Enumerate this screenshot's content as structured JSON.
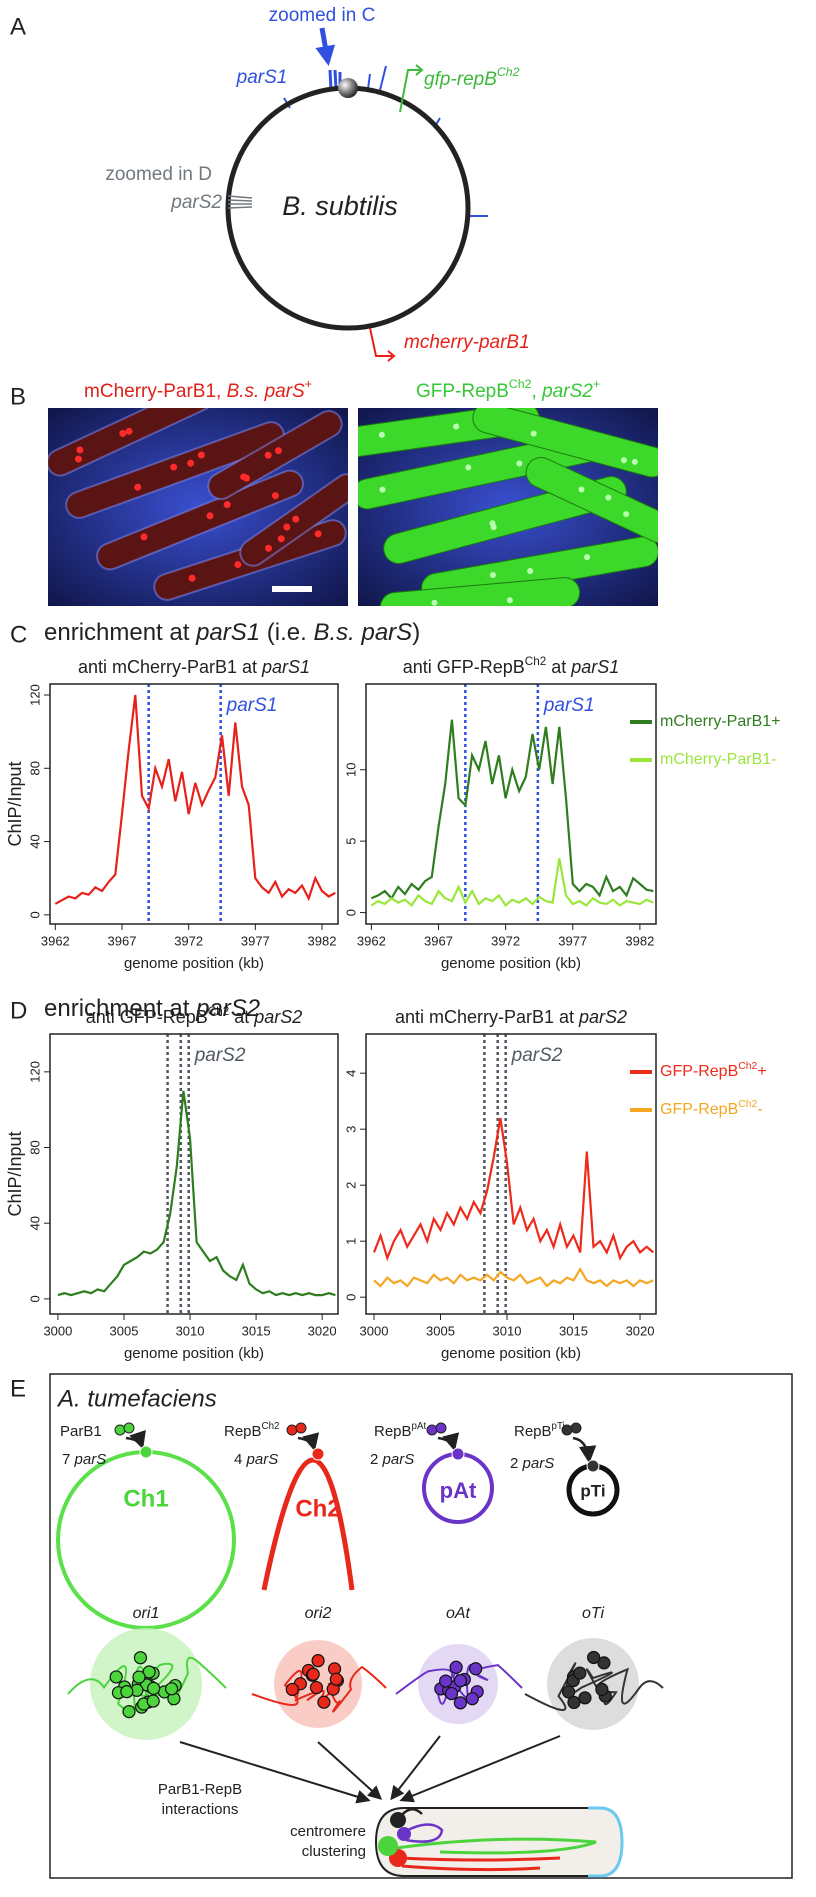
{
  "figure": {
    "panel_labels": [
      "A",
      "B",
      "C",
      "D",
      "E"
    ],
    "a": {
      "zoom_c": "zoomed in C",
      "pars1": "parS1",
      "gfp": [
        {
          "t": "gfp-repB"
        },
        {
          "t": "Ch2",
          "sup": true
        }
      ],
      "zoom_d": "zoomed in D",
      "pars2": "parS2",
      "organism": "B. subtilis",
      "mcherry": "mcherry-parB1"
    },
    "b": {
      "left_title": [
        {
          "t": "mCherry-ParB1, "
        },
        {
          "t": "B.s. parS",
          "i": true
        },
        {
          "t": "+",
          "sup": true
        }
      ],
      "right_title": [
        {
          "t": "GFP-RepB"
        },
        {
          "t": "Ch2",
          "sup": true
        },
        {
          "t": ", "
        },
        {
          "t": "parS2",
          "i": true
        },
        {
          "t": "+",
          "sup": true
        }
      ]
    },
    "c": {
      "heading": [
        {
          "t": "enrichment at "
        },
        {
          "t": "parS1",
          "i": true
        },
        {
          "t": " (i.e. "
        },
        {
          "t": "B.s. parS",
          "i": true
        },
        {
          "t": ")"
        }
      ]
    },
    "d": {
      "heading": [
        {
          "t": "enrichment at "
        },
        {
          "t": "parS2",
          "i": true
        }
      ]
    },
    "e": {
      "organism": "A. tumefaciens",
      "proteins": [
        "ParB1",
        [
          {
            "t": "RepB"
          },
          {
            "t": "Ch2",
            "sup": true
          }
        ],
        [
          {
            "t": "RepB"
          },
          {
            "t": "pAt",
            "sup": true
          }
        ],
        [
          {
            "t": "RepB"
          },
          {
            "t": "pTi",
            "sup": true
          }
        ]
      ],
      "pars": [
        [
          {
            "t": "7 "
          },
          {
            "t": "parS",
            "i": true
          }
        ],
        [
          {
            "t": "4 "
          },
          {
            "t": "parS",
            "i": true
          }
        ],
        [
          {
            "t": "2 "
          },
          {
            "t": "parS",
            "i": true
          }
        ],
        [
          {
            "t": "2 "
          },
          {
            "t": "parS",
            "i": true
          }
        ]
      ],
      "replicons": [
        "Ch1",
        "Ch2",
        "pAt",
        "pTi"
      ],
      "origins": [
        "ori1",
        "ori2",
        "oAt",
        "oTi"
      ],
      "interactions": [
        "ParB1-RepB",
        "interactions"
      ],
      "clustering": [
        "centromere",
        "clustering"
      ]
    }
  },
  "chart_data": [
    {
      "type": "line",
      "title": [
        {
          "t": "anti mCherry-ParB1 at "
        },
        {
          "t": "parS1",
          "i": true
        }
      ],
      "ylabel": "ChIP/Input",
      "xlabel": "genome position (kb)",
      "x": [
        3962,
        3962.5,
        3963,
        3963.5,
        3964,
        3964.5,
        3965,
        3965.5,
        3966,
        3966.5,
        3967,
        3967.5,
        3968,
        3968.5,
        3969,
        3969.5,
        3970,
        3970.5,
        3971,
        3971.5,
        3972,
        3972.5,
        3973,
        3973.5,
        3974,
        3974.5,
        3975,
        3975.5,
        3976,
        3976.5,
        3977,
        3977.5,
        3978,
        3978.5,
        3979,
        3979.5,
        3980,
        3980.5,
        3981,
        3981.5,
        3982,
        3982.5,
        3983
      ],
      "series": [
        {
          "name": "mCherry-ParB1",
          "color": "#e8201a",
          "values": [
            6,
            8,
            10,
            9,
            12,
            11,
            15,
            13,
            18,
            22,
            55,
            90,
            120,
            65,
            58,
            80,
            70,
            85,
            62,
            78,
            55,
            72,
            60,
            68,
            75,
            98,
            65,
            105,
            70,
            60,
            20,
            15,
            12,
            18,
            10,
            14,
            12,
            16,
            9,
            20,
            13,
            10,
            12
          ]
        }
      ],
      "xlim": [
        3961.6,
        3983.2
      ],
      "xticks": [
        3962,
        3967,
        3972,
        3977,
        3982
      ],
      "ylim": [
        -5,
        126
      ],
      "yticks": [
        0,
        40,
        80,
        120
      ],
      "vlines": [
        3969,
        3974.4
      ],
      "vline_label": "parS1",
      "vline_color": "#3050e0"
    },
    {
      "type": "line",
      "title": [
        {
          "t": "anti GFP-RepB"
        },
        {
          "t": "Ch2",
          "sup": true
        },
        {
          "t": " at "
        },
        {
          "t": "parS1",
          "i": true
        }
      ],
      "xlabel": "genome position (kb)",
      "x": [
        3962,
        3962.5,
        3963,
        3963.5,
        3964,
        3964.5,
        3965,
        3965.5,
        3966,
        3966.5,
        3967,
        3967.5,
        3968,
        3968.5,
        3969,
        3969.5,
        3970,
        3970.5,
        3971,
        3971.5,
        3972,
        3972.5,
        3973,
        3973.5,
        3974,
        3974.5,
        3975,
        3975.5,
        3976,
        3976.5,
        3977,
        3977.5,
        3978,
        3978.5,
        3979,
        3979.5,
        3980,
        3980.5,
        3981,
        3981.5,
        3982,
        3982.5,
        3983
      ],
      "series": [
        {
          "name": "mCherry-ParB1+",
          "color": "#2e7d1e",
          "values": [
            1,
            1.2,
            1.5,
            1,
            1.8,
            1.3,
            2,
            1.6,
            2.2,
            2.5,
            6,
            9,
            13.5,
            8,
            7.5,
            11,
            10,
            12,
            9,
            11,
            8,
            10,
            8.5,
            9.5,
            12.5,
            10,
            13,
            9,
            13,
            8,
            2,
            1.5,
            2,
            1.8,
            1.2,
            2.5,
            1.5,
            1.8,
            1.2,
            2.4,
            2,
            1.6,
            1.5
          ]
        },
        {
          "name": "mCherry-ParB1-",
          "color": "#9be63c",
          "values": [
            0.5,
            0.8,
            0.6,
            1,
            0.7,
            0.9,
            0.5,
            1.2,
            0.8,
            0.6,
            1.5,
            1,
            0.8,
            1.8,
            0.7,
            1.5,
            0.6,
            1,
            0.8,
            1.2,
            0.5,
            0.9,
            0.7,
            1,
            0.6,
            1.1,
            0.8,
            0.7,
            3.8,
            1.2,
            0.6,
            0.8,
            0.5,
            1,
            0.7,
            0.6,
            0.9,
            0.5,
            0.8,
            0.7,
            0.6,
            0.9,
            0.7
          ]
        }
      ],
      "xlim": [
        3961.6,
        3983.2
      ],
      "xticks": [
        3962,
        3967,
        3972,
        3977,
        3982
      ],
      "ylim": [
        -0.8,
        16
      ],
      "yticks": [
        0,
        5,
        10
      ],
      "vlines": [
        3969,
        3974.4
      ],
      "vline_label": "parS1",
      "vline_color": "#3050e0",
      "legend": "right"
    },
    {
      "type": "line",
      "title": [
        {
          "t": "anti GFP-RepB"
        },
        {
          "t": "Ch2",
          "sup": true
        },
        {
          "t": "  at "
        },
        {
          "t": "parS2",
          "i": true
        }
      ],
      "ylabel": "ChIP/Input",
      "xlabel": "genome position (kb)",
      "x": [
        3000,
        3000.5,
        3001,
        3001.5,
        3002,
        3002.5,
        3003,
        3003.5,
        3004,
        3004.5,
        3005,
        3005.5,
        3006,
        3006.5,
        3007,
        3007.5,
        3008,
        3008.5,
        3009,
        3009.5,
        3010,
        3010.5,
        3011,
        3011.5,
        3012,
        3012.5,
        3013,
        3013.5,
        3014,
        3014.5,
        3015,
        3015.5,
        3016,
        3016.5,
        3017,
        3017.5,
        3018,
        3018.5,
        3019,
        3019.5,
        3020,
        3020.5,
        3021
      ],
      "series": [
        {
          "name": "GFP-RepB",
          "color": "#2e7d1e",
          "values": [
            2,
            3,
            2,
            3,
            4,
            3,
            5,
            4,
            8,
            12,
            18,
            20,
            22,
            25,
            24,
            26,
            30,
            45,
            70,
            110,
            85,
            30,
            25,
            20,
            22,
            15,
            12,
            10,
            18,
            8,
            5,
            3,
            4,
            2,
            3,
            2,
            3,
            2,
            3,
            2,
            2,
            3,
            2
          ]
        }
      ],
      "xlim": [
        2999.4,
        3021.2
      ],
      "xticks": [
        3000,
        3005,
        3010,
        3015,
        3020
      ],
      "ylim": [
        -8,
        140
      ],
      "yticks": [
        0,
        40,
        80,
        120
      ],
      "vlines": [
        3008.3,
        3009.3,
        3009.9
      ],
      "vline_label": "parS2",
      "vline_color": "#505860"
    },
    {
      "type": "line",
      "title": [
        {
          "t": "anti mCherry-ParB1 at "
        },
        {
          "t": "parS2",
          "i": true
        }
      ],
      "xlabel": "genome position (kb)",
      "x": [
        3000,
        3000.5,
        3001,
        3001.5,
        3002,
        3002.5,
        3003,
        3003.5,
        3004,
        3004.5,
        3005,
        3005.5,
        3006,
        3006.5,
        3007,
        3007.5,
        3008,
        3008.5,
        3009,
        3009.5,
        3010,
        3010.5,
        3011,
        3011.5,
        3012,
        3012.5,
        3013,
        3013.5,
        3014,
        3014.5,
        3015,
        3015.5,
        3016,
        3016.5,
        3017,
        3017.5,
        3018,
        3018.5,
        3019,
        3019.5,
        3020,
        3020.5,
        3021
      ],
      "series": [
        {
          "name": [
            {
              "t": "GFP-RepB"
            },
            {
              "t": "Ch2",
              "sup": true
            },
            {
              "t": "+"
            }
          ],
          "color": "#ee2a1a",
          "values": [
            0.8,
            1.1,
            0.7,
            1.0,
            1.2,
            0.9,
            1.1,
            1.3,
            1.0,
            1.4,
            1.2,
            1.5,
            1.3,
            1.6,
            1.4,
            1.7,
            1.5,
            1.9,
            2.5,
            3.2,
            2.4,
            1.3,
            1.6,
            1.2,
            1.4,
            1.0,
            1.2,
            0.9,
            1.3,
            0.9,
            1.1,
            0.8,
            2.6,
            0.9,
            1.0,
            0.8,
            1.1,
            0.7,
            0.9,
            1.0,
            0.8,
            0.9,
            0.8
          ]
        },
        {
          "name": [
            {
              "t": "GFP-RepB"
            },
            {
              "t": "Ch2",
              "sup": true
            },
            {
              "t": "-"
            }
          ],
          "color": "#f5a623",
          "values": [
            0.3,
            0.2,
            0.35,
            0.25,
            0.3,
            0.2,
            0.35,
            0.3,
            0.25,
            0.4,
            0.3,
            0.35,
            0.25,
            0.4,
            0.3,
            0.35,
            0.3,
            0.4,
            0.3,
            0.45,
            0.35,
            0.3,
            0.4,
            0.25,
            0.3,
            0.35,
            0.2,
            0.3,
            0.25,
            0.35,
            0.3,
            0.5,
            0.3,
            0.25,
            0.3,
            0.2,
            0.3,
            0.25,
            0.3,
            0.2,
            0.3,
            0.25,
            0.3
          ]
        }
      ],
      "xlim": [
        2999.4,
        3021.2
      ],
      "xticks": [
        3000,
        3005,
        3010,
        3015,
        3020
      ],
      "ylim": [
        -0.3,
        4.7
      ],
      "yticks": [
        0,
        1,
        2,
        3,
        4
      ],
      "vlines": [
        3008.3,
        3009.3,
        3009.9
      ],
      "vline_label": "parS2",
      "vline_color": "#505860",
      "legend": "right"
    }
  ]
}
